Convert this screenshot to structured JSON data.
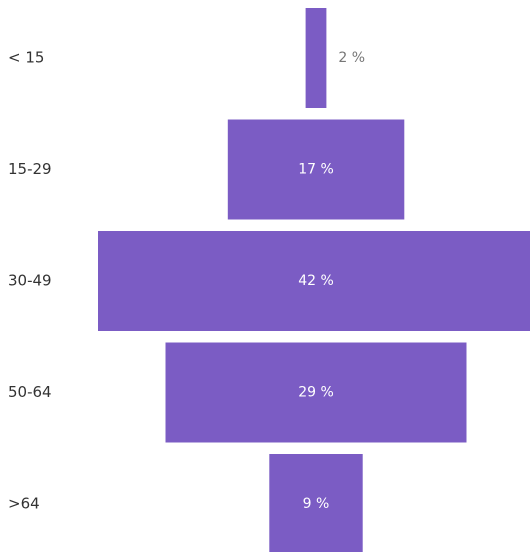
{
  "chart_data": {
    "type": "bar",
    "orientation": "horizontal-centered",
    "categories": [
      "< 15",
      "15-29",
      "30-49",
      "50-64",
      ">64"
    ],
    "values": [
      2,
      17,
      42,
      29,
      9
    ],
    "value_labels": [
      "2 %",
      "17 %",
      "42 %",
      "29 %",
      "9 %"
    ],
    "value_unit": "%",
    "title": "",
    "xlabel": "",
    "ylabel": "",
    "grid": false,
    "legend": "none"
  },
  "colors": {
    "bar": "#7b5cc4",
    "label_inside": "#ffffff",
    "label_outside": "#777777",
    "category_text": "#333333"
  }
}
